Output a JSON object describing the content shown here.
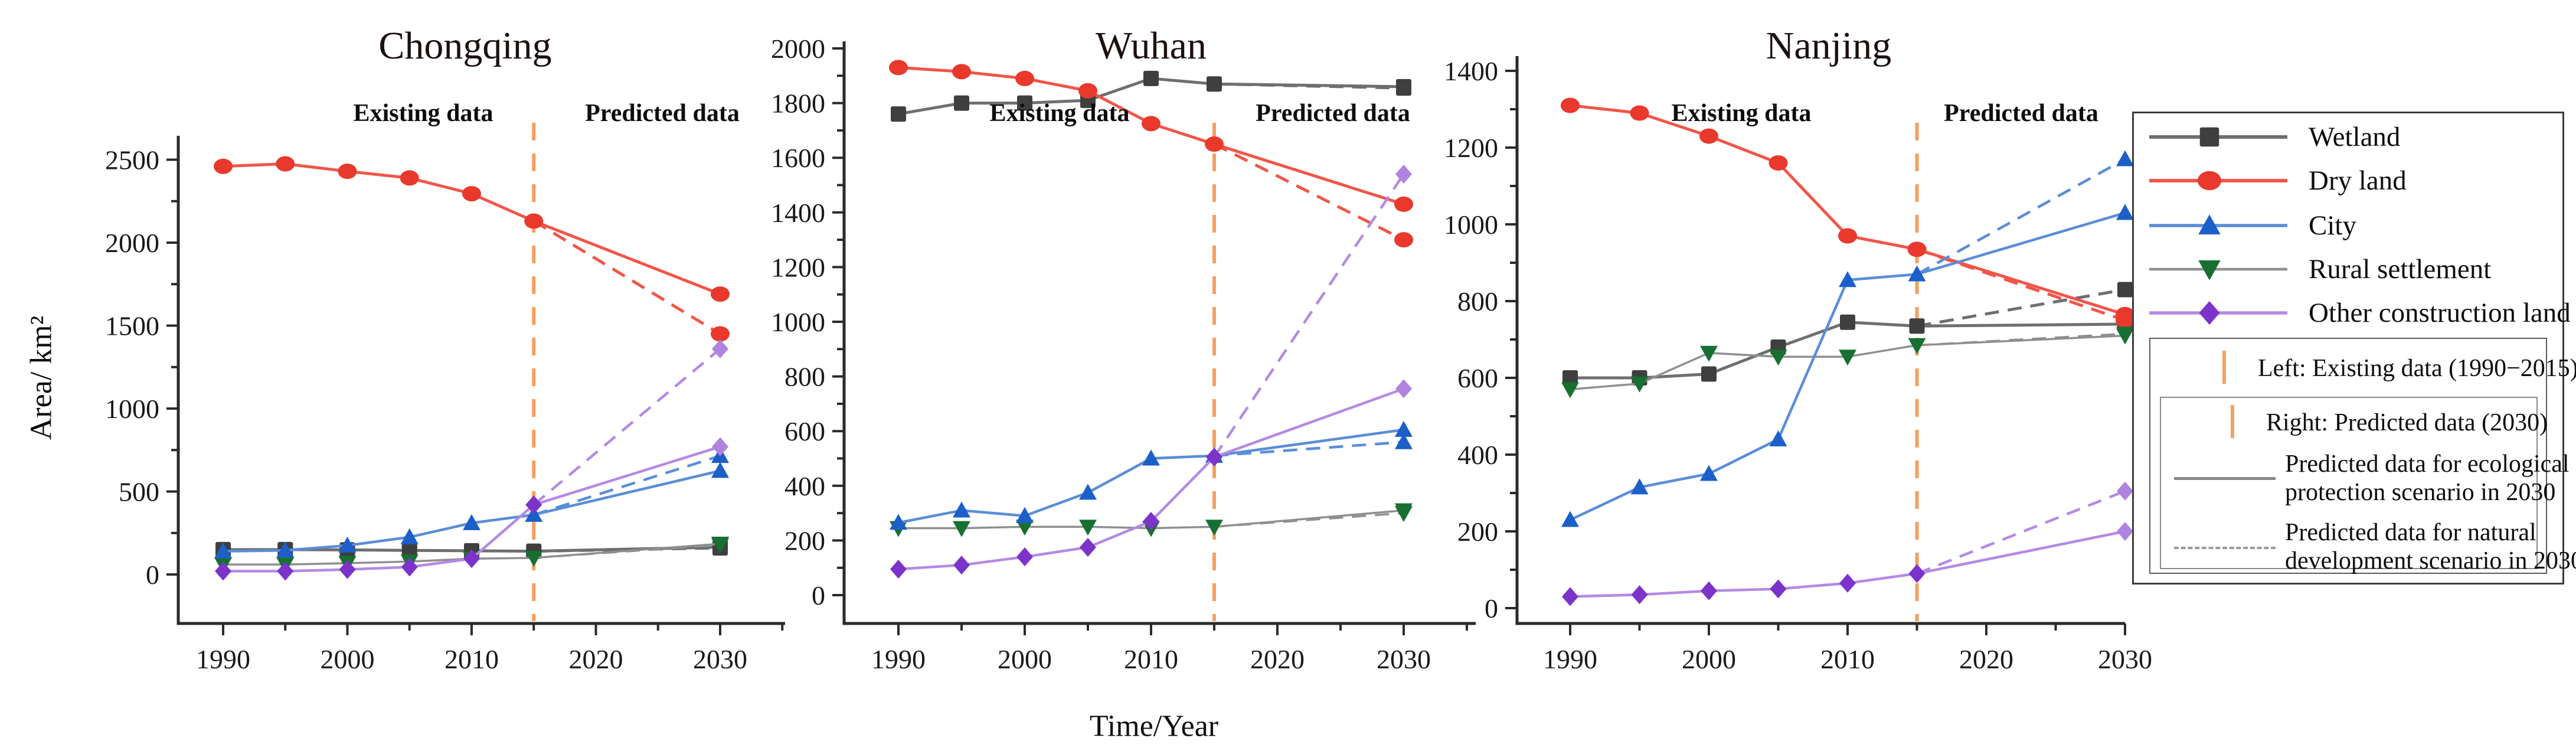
{
  "colors": {
    "background": "#ffffff",
    "axis": "#2a2a2a",
    "divider": "#f5a05f",
    "tick_label": "#1a1a1a"
  },
  "figure": {
    "y_axis_label": "Area/ km²",
    "x_axis_label": "Time/Year",
    "existing_zone_label": "Existing data",
    "predicted_zone_label": "Predicted data"
  },
  "legend": {
    "series": [
      {
        "label": "Wetland",
        "marker": "square",
        "marker_color": "#3f3f3f",
        "line_color": "#6f6f6f",
        "line_width": 5
      },
      {
        "label": "Dry land",
        "marker": "ellipse",
        "marker_color": "#e8392c",
        "line_color": "#f0564a",
        "line_width": 5
      },
      {
        "label": "City",
        "marker": "triangle-up",
        "marker_color": "#1c5fc9",
        "line_color": "#5b8dd8",
        "line_width": 4.5
      },
      {
        "label": "Rural settlement",
        "marker": "triangle-down",
        "marker_color": "#177031",
        "line_color": "#8f8f8f",
        "line_width": 3.5
      },
      {
        "label": "Other construction land",
        "marker": "diamond",
        "marker_color": "#7c33c9",
        "marker_color_2030": "#b083e0",
        "line_color": "#b48ae3",
        "line_width": 4.5
      }
    ],
    "notes": {
      "left": "Left: Existing data (1990−2015)",
      "right": "Right: Predicted data (2030)",
      "eco_line1": "Predicted data for ecological",
      "eco_line2": "protection scenario in 2030",
      "nat_line1": "Predicted data for natural",
      "nat_line2": "development scenario in 2030",
      "eco_line_color": "#8a8a8a",
      "nat_line_color": "#9a9a9a"
    }
  },
  "chart_data": [
    {
      "type": "line",
      "title": "Chongqing",
      "ylabel": "Area/ km²",
      "xlabel": "Time/Year",
      "ylim": [
        0,
        2644
      ],
      "yticks": [
        0,
        500,
        1000,
        1500,
        2000,
        2500
      ],
      "y_minor_step": 250,
      "xticks": [
        1990,
        2000,
        2010,
        2020,
        2030
      ],
      "x_existing": [
        1990,
        1995,
        2000,
        2005,
        2010,
        2015
      ],
      "x_predicted": 2030,
      "divider_year": 2015,
      "legend_position": "none",
      "grid": false,
      "series": [
        {
          "name": "Wetland",
          "existing": [
            150,
            150,
            148,
            145,
            143,
            140
          ],
          "predicted_2030": {
            "ecological": 165,
            "natural": 160
          }
        },
        {
          "name": "Dry land",
          "existing": [
            2460,
            2475,
            2430,
            2390,
            2295,
            2130
          ],
          "predicted_2030": {
            "ecological": 1690,
            "natural": 1450
          }
        },
        {
          "name": "City",
          "existing": [
            140,
            145,
            175,
            225,
            310,
            360
          ],
          "predicted_2030": {
            "ecological": 625,
            "natural": 715
          }
        },
        {
          "name": "Rural settlement",
          "existing": [
            60,
            60,
            68,
            78,
            95,
            100
          ],
          "predicted_2030": {
            "ecological": 185,
            "natural": 178
          }
        },
        {
          "name": "Other construction land",
          "existing": [
            20,
            20,
            30,
            45,
            95,
            420
          ],
          "predicted_2030": {
            "ecological": 770,
            "natural": 1360
          }
        }
      ]
    },
    {
      "type": "line",
      "title": "Wuhan",
      "ylabel": "Area/ km²",
      "xlabel": "Time/Year",
      "ylim": [
        0,
        2026
      ],
      "yticks": [
        0,
        200,
        400,
        600,
        800,
        1000,
        1200,
        1400,
        1600,
        1800,
        2000
      ],
      "y_minor_step": 100,
      "xticks": [
        1990,
        2000,
        2010,
        2020,
        2030
      ],
      "x_existing": [
        1990,
        1995,
        2000,
        2005,
        2010,
        2015
      ],
      "x_predicted": 2030,
      "divider_year": 2015,
      "legend_position": "none",
      "grid": false,
      "series": [
        {
          "name": "Wetland",
          "existing": [
            1760,
            1800,
            1800,
            1810,
            1890,
            1870
          ],
          "predicted_2030": {
            "ecological": 1860,
            "natural": 1855
          }
        },
        {
          "name": "Dry land",
          "existing": [
            1930,
            1915,
            1890,
            1845,
            1725,
            1650
          ],
          "predicted_2030": {
            "ecological": 1430,
            "natural": 1300
          }
        },
        {
          "name": "City",
          "existing": [
            265,
            310,
            290,
            375,
            500,
            510
          ],
          "predicted_2030": {
            "ecological": 605,
            "natural": 560
          }
        },
        {
          "name": "Rural settlement",
          "existing": [
            245,
            245,
            250,
            250,
            245,
            250
          ],
          "predicted_2030": {
            "ecological": 310,
            "natural": 300
          }
        },
        {
          "name": "Other construction land",
          "existing": [
            95,
            110,
            140,
            175,
            270,
            505
          ],
          "predicted_2030": {
            "ecological": 755,
            "natural": 1540
          }
        }
      ]
    },
    {
      "type": "line",
      "title": "Nanjing",
      "ylabel": "Area/ km²",
      "xlabel": "Time/Year",
      "ylim": [
        0,
        1438
      ],
      "yticks": [
        0,
        200,
        400,
        600,
        800,
        1000,
        1200,
        1400
      ],
      "y_minor_step": 100,
      "xticks": [
        1990,
        2000,
        2010,
        2020,
        2030
      ],
      "x_existing": [
        1990,
        1995,
        2000,
        2005,
        2010,
        2015
      ],
      "x_predicted": 2030,
      "divider_year": 2015,
      "legend_position": "right",
      "grid": false,
      "series": [
        {
          "name": "Wetland",
          "existing": [
            600,
            600,
            610,
            680,
            745,
            735
          ],
          "predicted_2030": {
            "ecological": 740,
            "natural": 830
          }
        },
        {
          "name": "Dry land",
          "existing": [
            1310,
            1290,
            1230,
            1160,
            970,
            935
          ],
          "predicted_2030": {
            "ecological": 765,
            "natural": 750
          }
        },
        {
          "name": "City",
          "existing": [
            230,
            315,
            350,
            440,
            855,
            870
          ],
          "predicted_2030": {
            "ecological": 1030,
            "natural": 1170
          }
        },
        {
          "name": "Rural settlement",
          "existing": [
            570,
            585,
            665,
            655,
            655,
            685
          ],
          "predicted_2030": {
            "ecological": 710,
            "natural": 715
          }
        },
        {
          "name": "Other construction land",
          "existing": [
            30,
            35,
            45,
            50,
            65,
            90
          ],
          "predicted_2030": {
            "ecological": 200,
            "natural": 305
          }
        }
      ]
    }
  ]
}
